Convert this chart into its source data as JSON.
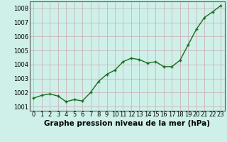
{
  "x": [
    0,
    1,
    2,
    3,
    4,
    5,
    6,
    7,
    8,
    9,
    10,
    11,
    12,
    13,
    14,
    15,
    16,
    17,
    18,
    19,
    20,
    21,
    22,
    23
  ],
  "y": [
    1001.6,
    1001.8,
    1001.9,
    1001.75,
    1001.35,
    1001.5,
    1001.4,
    1002.0,
    1002.8,
    1003.3,
    1003.6,
    1004.2,
    1004.45,
    1004.35,
    1004.1,
    1004.2,
    1003.85,
    1003.85,
    1004.3,
    1005.4,
    1006.5,
    1007.35,
    1007.75,
    1008.2
  ],
  "line_color": "#1a6b1a",
  "marker_color": "#1a6b1a",
  "bg_color": "#cef0e8",
  "grid_color": "#c8aab4",
  "xlabel": "Graphe pression niveau de la mer (hPa)",
  "ylim": [
    1000.7,
    1008.5
  ],
  "yticks": [
    1001,
    1002,
    1003,
    1004,
    1005,
    1006,
    1007,
    1008
  ],
  "xlim": [
    -0.5,
    23.5
  ],
  "xticks": [
    0,
    1,
    2,
    3,
    4,
    5,
    6,
    7,
    8,
    9,
    10,
    11,
    12,
    13,
    14,
    15,
    16,
    17,
    18,
    19,
    20,
    21,
    22,
    23
  ],
  "xlabel_fontsize": 7.5,
  "tick_fontsize": 6.0,
  "line_width": 1.0,
  "marker_size": 3.5
}
